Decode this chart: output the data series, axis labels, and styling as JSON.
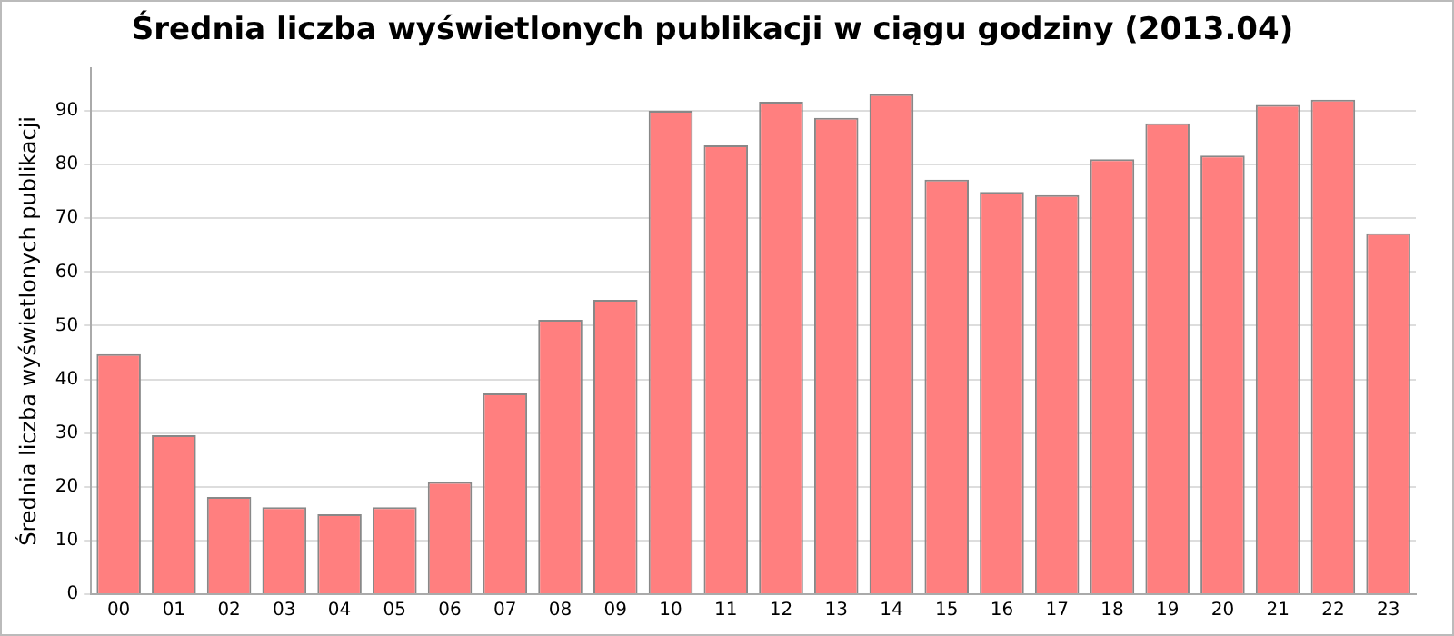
{
  "chart_data": {
    "type": "bar",
    "title": "Średnia liczba wyświetlonych publikacji w ciągu godziny (2013.04)",
    "ylabel": "Średnia liczba wyświetlonych publikacji",
    "categories": [
      "00",
      "01",
      "02",
      "03",
      "04",
      "05",
      "06",
      "07",
      "08",
      "09",
      "10",
      "11",
      "12",
      "13",
      "14",
      "15",
      "16",
      "17",
      "18",
      "19",
      "20",
      "21",
      "22",
      "23"
    ],
    "values": [
      44.7,
      29.6,
      18.1,
      16.2,
      14.9,
      16.2,
      20.9,
      37.4,
      51.1,
      54.8,
      90.0,
      83.6,
      91.7,
      88.7,
      93.1,
      77.2,
      74.9,
      74.3,
      81.0,
      87.7,
      81.7,
      91.1,
      92.1,
      67.2
    ],
    "color": "#ff7f7f",
    "ylim": [
      0,
      98
    ],
    "yticks": [
      0,
      10,
      20,
      30,
      40,
      50,
      60,
      70,
      80,
      90
    ],
    "grid": "y",
    "legend": false
  }
}
